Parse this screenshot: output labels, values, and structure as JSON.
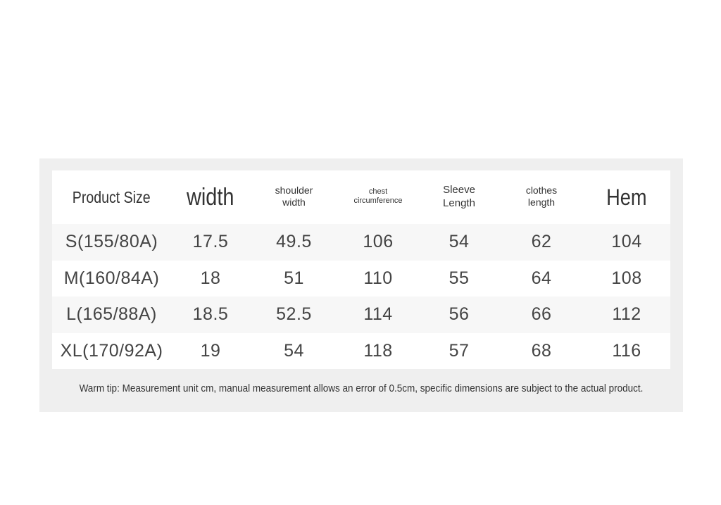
{
  "table": {
    "header": [
      "Product Size",
      "width",
      "shoulder width",
      "chest circumference",
      "Sleeve Length",
      "clothes length",
      "Hem"
    ],
    "rows": [
      [
        "S(155/80A)",
        "17.5",
        "49.5",
        "106",
        "54",
        "62",
        "104"
      ],
      [
        "M(160/84A)",
        "18",
        "51",
        "110",
        "55",
        "64",
        "108"
      ],
      [
        "L(165/88A)",
        "18.5",
        "52.5",
        "114",
        "56",
        "66",
        "112"
      ],
      [
        "XL(170/92A)",
        "19",
        "54",
        "118",
        "57",
        "68",
        "116"
      ]
    ]
  },
  "footer": {
    "tip": "Warm tip: Measurement unit cm, manual measurement allows an error of 0.5cm, specific dimensions are subject to the actual product."
  }
}
